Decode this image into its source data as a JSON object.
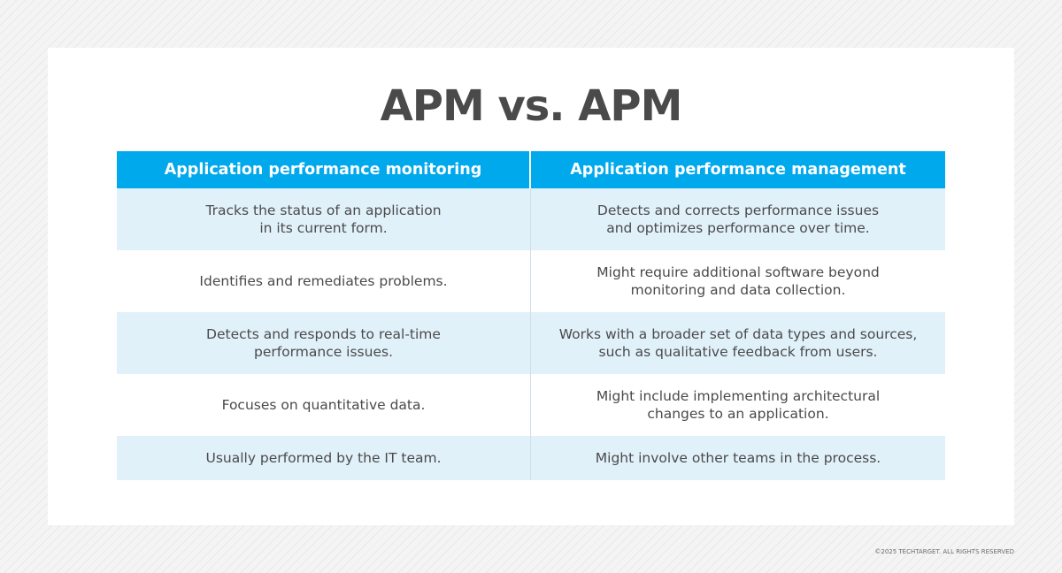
{
  "title": "APM vs. APM",
  "table": {
    "headers": [
      "Application performance monitoring",
      "Application performance management"
    ],
    "rows": [
      {
        "left": "Tracks the status of an application\nin its current form.",
        "right": "Detects and corrects performance issues\nand optimizes performance over time."
      },
      {
        "left": "Identifies and remediates problems.",
        "right": "Might require additional software beyond\nmonitoring and data collection."
      },
      {
        "left": "Detects and responds to real-time\nperformance issues.",
        "right": "Works with a broader set of data types and sources,\nsuch as qualitative feedback from users."
      },
      {
        "left": "Focuses on quantitative data.",
        "right": "Might include implementing architectural\nchanges to an application."
      },
      {
        "left": "Usually performed by the IT team.",
        "right": "Might involve other teams in the process."
      }
    ]
  },
  "footer": "©2025 TECHTARGET. ALL RIGHTS RESERVED",
  "colors": {
    "header_bg": "#00a8ec",
    "row_shade": "#e1f1fa",
    "text": "#4a4a4a"
  }
}
